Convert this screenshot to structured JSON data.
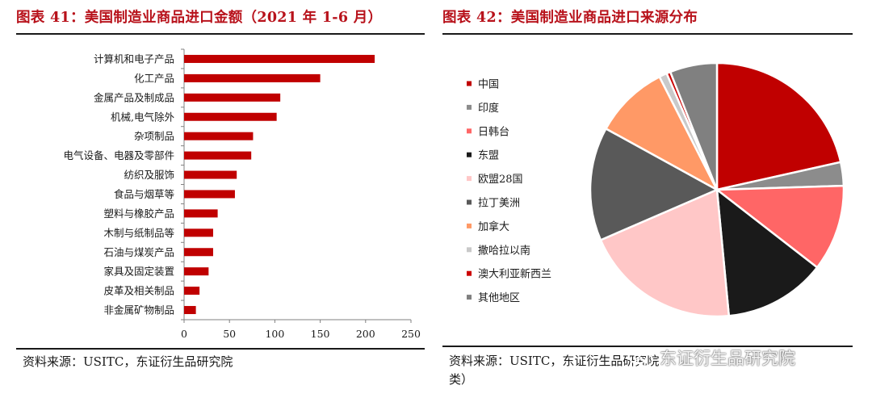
{
  "left": {
    "title": "图表 41：美国制造业商品进口金额（2021 年 1-6 月）",
    "source": "资料来源：USITC，东证衍生品研究院"
  },
  "right": {
    "title": "图表 42：美国制造业商品进口来源分布",
    "source": "资料来源：USITC，东证衍生品研究院",
    "source_wrap": "类）"
  },
  "watermark": {
    "text": "东证衍生品研究院",
    "icon": "wechat-icon"
  },
  "chart_data": [
    {
      "type": "bar",
      "orientation": "horizontal",
      "categories": [
        "计算机和电子产品",
        "化工产品",
        "金属产品及制成品",
        "机械,电气除外",
        "杂项制品",
        "电气设备、电器及零部件",
        "纺织及服饰",
        "食品与烟草等",
        "塑料与橡胶产品",
        "木制与纸制品等",
        "石油与煤炭产品",
        "家具及固定装置",
        "皮革及相关制品",
        "非金属矿物制品"
      ],
      "values": [
        210,
        150,
        106,
        102,
        76,
        74,
        58,
        56,
        37,
        32,
        32,
        27,
        17,
        13
      ],
      "xlim": [
        0,
        250
      ],
      "xticks": [
        0,
        50,
        100,
        150,
        200,
        250
      ],
      "bar_color": "#c00000",
      "grid": false
    },
    {
      "type": "pie",
      "labels": [
        "中国",
        "印度",
        "日韩台",
        "东盟",
        "欧盟28国",
        "拉丁美洲",
        "加拿大",
        "撒哈拉以南",
        "澳大利亚新西兰",
        "其他地区"
      ],
      "values": [
        21.5,
        3.0,
        11.0,
        13.0,
        20.0,
        14.5,
        9.5,
        1.0,
        0.5,
        6.0
      ],
      "colors": [
        "#c00000",
        "#8c8c8c",
        "#ff6666",
        "#1a1a1a",
        "#ffc7c7",
        "#595959",
        "#ff9966",
        "#c9c9c9",
        "#cc0000",
        "#808080"
      ],
      "legend_position": "left"
    }
  ]
}
